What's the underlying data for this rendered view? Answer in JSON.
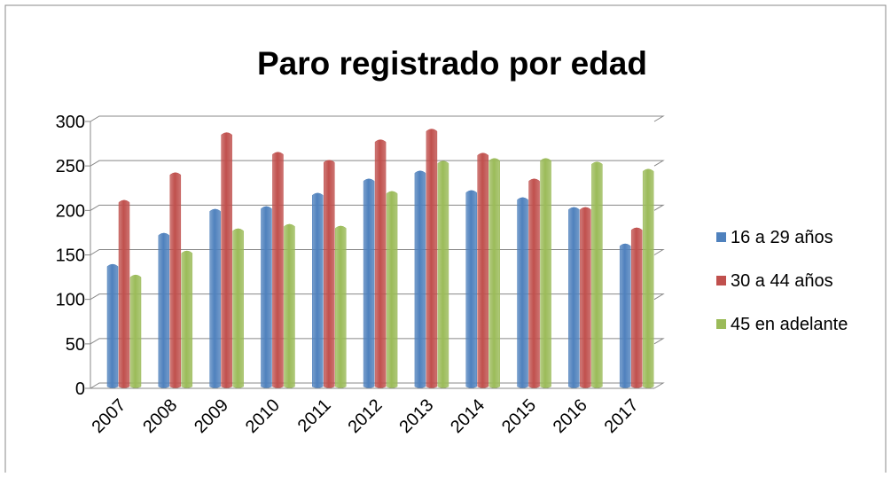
{
  "chart_data": {
    "type": "bar",
    "title": "Paro registrado por edad",
    "categories": [
      "2007",
      "2008",
      "2009",
      "2010",
      "2011",
      "2012",
      "2013",
      "2014",
      "2015",
      "2016",
      "2017"
    ],
    "series": [
      {
        "name": "16 a 29 años",
        "color": "#4f81bd",
        "values": [
          135,
          170,
          197,
          200,
          215,
          231,
          240,
          218,
          210,
          199,
          158
        ]
      },
      {
        "name": "30 a 44 años",
        "color": "#c0504d",
        "values": [
          207,
          238,
          283,
          261,
          252,
          275,
          287,
          260,
          231,
          199,
          176
        ]
      },
      {
        "name": "45 en adelante",
        "color": "#9bbb59",
        "values": [
          123,
          150,
          175,
          180,
          178,
          217,
          251,
          254,
          254,
          250,
          242
        ]
      }
    ],
    "ylim": [
      0,
      300
    ],
    "yticks": [
      0,
      50,
      100,
      150,
      200,
      250,
      300
    ],
    "grid": true,
    "legend": "right"
  }
}
